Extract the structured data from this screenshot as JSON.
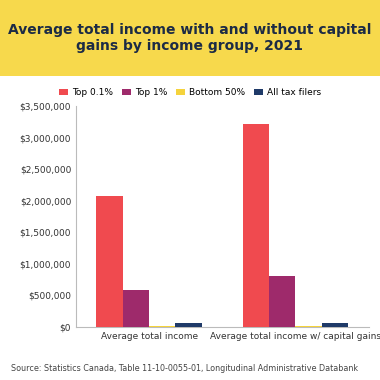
{
  "chart_data": {
    "type": "bar",
    "title": "Average total income with and without capital gains by income group, 2021",
    "source": "Source: Statistics Canada, Table 11-10-0055-01, Longitudinal Administrative Databank",
    "categories": [
      "Average total income",
      "Average total income w/ capital gains"
    ],
    "series": [
      {
        "name": "Top 0.1%",
        "color": "#f04a4f",
        "values": [
          2080000,
          3220000
        ]
      },
      {
        "name": "Top 1%",
        "color": "#9e2a6b",
        "values": [
          580000,
          810000
        ]
      },
      {
        "name": "Bottom 50%",
        "color": "#f5d33c",
        "values": [
          15000,
          15000
        ]
      },
      {
        "name": "All tax filers",
        "color": "#1f3a68",
        "values": [
          54000,
          59000
        ]
      }
    ],
    "ylim": [
      0,
      3500000
    ],
    "yticks": [
      {
        "value": 0,
        "label": "$0"
      },
      {
        "value": 500000,
        "label": "$500,000"
      },
      {
        "value": 1000000,
        "label": "$1,000,000"
      },
      {
        "value": 1500000,
        "label": "$1,500,000"
      },
      {
        "value": 2000000,
        "label": "$2,000,000"
      },
      {
        "value": 2500000,
        "label": "$2,500,000"
      },
      {
        "value": 3000000,
        "label": "$3,000,000"
      },
      {
        "value": 3500000,
        "label": "$3,500,000"
      }
    ],
    "grid": false,
    "legend": "upper center"
  }
}
